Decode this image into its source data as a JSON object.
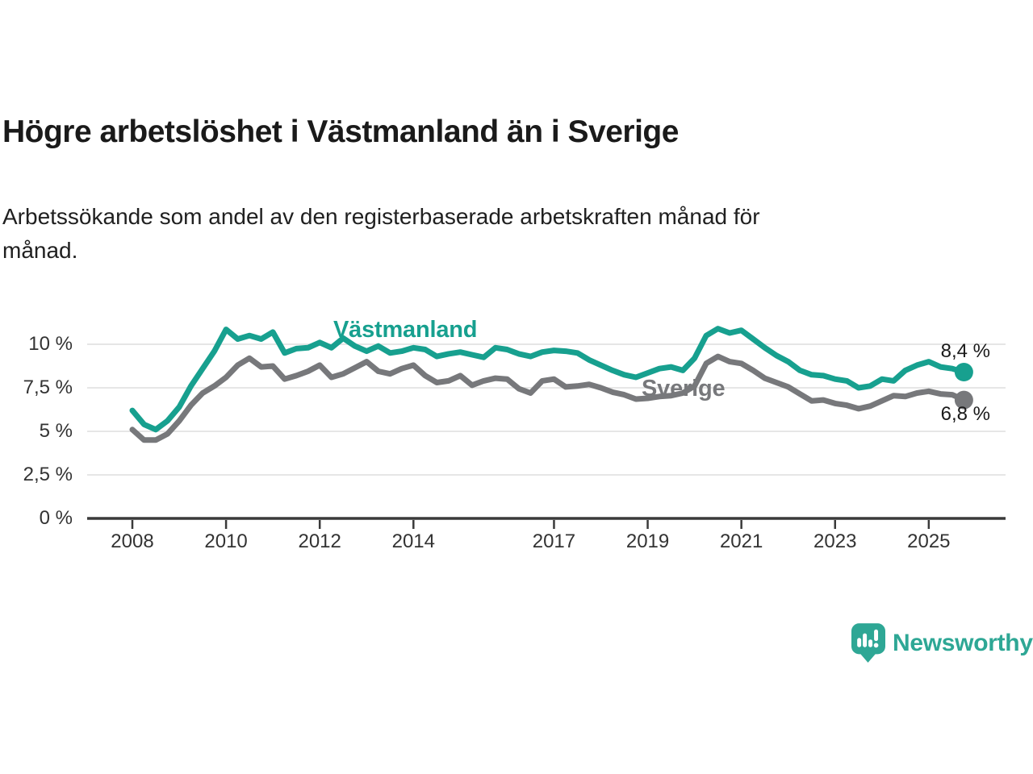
{
  "header": {
    "title": "Högre arbetslöshet i Västmanland än i Sverige",
    "subtitle_lines": [
      "Arbetssökande som andel av den registerbaserade arbetskraften månad för",
      "månad."
    ]
  },
  "colors": {
    "accent_teal": "#17A08F",
    "series_gray": "#77787B",
    "text_dark": "#1A1A1A",
    "text_body": "#202020",
    "axis_text": "#333333",
    "grid_line": "#DEDEDE",
    "axis_line": "#3A3A3A",
    "logo_teal": "#2EA795"
  },
  "chart_data": {
    "type": "line",
    "title": "Högre arbetslöshet i Västmanland än i Sverige",
    "xlabel": "",
    "ylabel": "Arbetssökande som andel av den registerbaserade arbetskraften",
    "unit": "%",
    "x_start": 2008,
    "x_step": 0.25,
    "x_end": 2025.75,
    "xlim": [
      2007.1,
      2026.6
    ],
    "ylim": [
      0,
      11.6
    ],
    "grid": "horizontal",
    "legend_position": "inline-labels",
    "x_ticks": [
      2008,
      2010,
      2012,
      2014,
      2017,
      2019,
      2021,
      2023,
      2025
    ],
    "y_ticks": [
      {
        "value": 0,
        "label": "0 %"
      },
      {
        "value": 2.5,
        "label": "2,5 %"
      },
      {
        "value": 5,
        "label": "5 %"
      },
      {
        "value": 7.5,
        "label": "7,5 %"
      },
      {
        "value": 10,
        "label": "10 %"
      }
    ],
    "series": [
      {
        "name": "Västmanland",
        "color": "#17A08F",
        "end_label": "8,4 %",
        "end_value": 8.4,
        "values": [
          6.2,
          5.4,
          5.1,
          5.6,
          6.4,
          7.6,
          8.6,
          9.6,
          10.85,
          10.3,
          10.5,
          10.3,
          10.7,
          9.5,
          9.75,
          9.8,
          10.1,
          9.8,
          10.35,
          9.9,
          9.6,
          9.9,
          9.5,
          9.6,
          9.8,
          9.7,
          9.3,
          9.45,
          9.55,
          9.4,
          9.25,
          9.8,
          9.7,
          9.45,
          9.3,
          9.55,
          9.65,
          9.6,
          9.5,
          9.1,
          8.8,
          8.5,
          8.25,
          8.1,
          8.35,
          8.6,
          8.7,
          8.5,
          9.2,
          10.5,
          10.9,
          10.65,
          10.8,
          10.3,
          9.8,
          9.35,
          9.0,
          8.5,
          8.25,
          8.2,
          8.0,
          7.9,
          7.5,
          7.6,
          8.0,
          7.9,
          8.5,
          8.8,
          9.0,
          8.7,
          8.6,
          8.4
        ]
      },
      {
        "name": "Sverige",
        "color": "#77787B",
        "end_label": "6,8 %",
        "end_value": 6.8,
        "values": [
          5.1,
          4.5,
          4.5,
          4.85,
          5.6,
          6.5,
          7.2,
          7.6,
          8.1,
          8.8,
          9.2,
          8.7,
          8.75,
          8.0,
          8.2,
          8.45,
          8.8,
          8.1,
          8.3,
          8.65,
          9.0,
          8.45,
          8.3,
          8.6,
          8.8,
          8.2,
          7.8,
          7.9,
          8.2,
          7.65,
          7.9,
          8.05,
          8.0,
          7.45,
          7.2,
          7.9,
          8.0,
          7.55,
          7.6,
          7.7,
          7.5,
          7.25,
          7.1,
          6.85,
          6.9,
          7.0,
          7.05,
          7.2,
          7.6,
          8.9,
          9.3,
          9.0,
          8.9,
          8.5,
          8.05,
          7.8,
          7.55,
          7.15,
          6.75,
          6.8,
          6.6,
          6.5,
          6.3,
          6.45,
          6.75,
          7.05,
          7.0,
          7.2,
          7.3,
          7.15,
          7.1,
          6.8
        ]
      }
    ]
  },
  "branding": {
    "logo_text": "Newsworthy",
    "logo_icon": "bar-chart-speech-bubble"
  }
}
